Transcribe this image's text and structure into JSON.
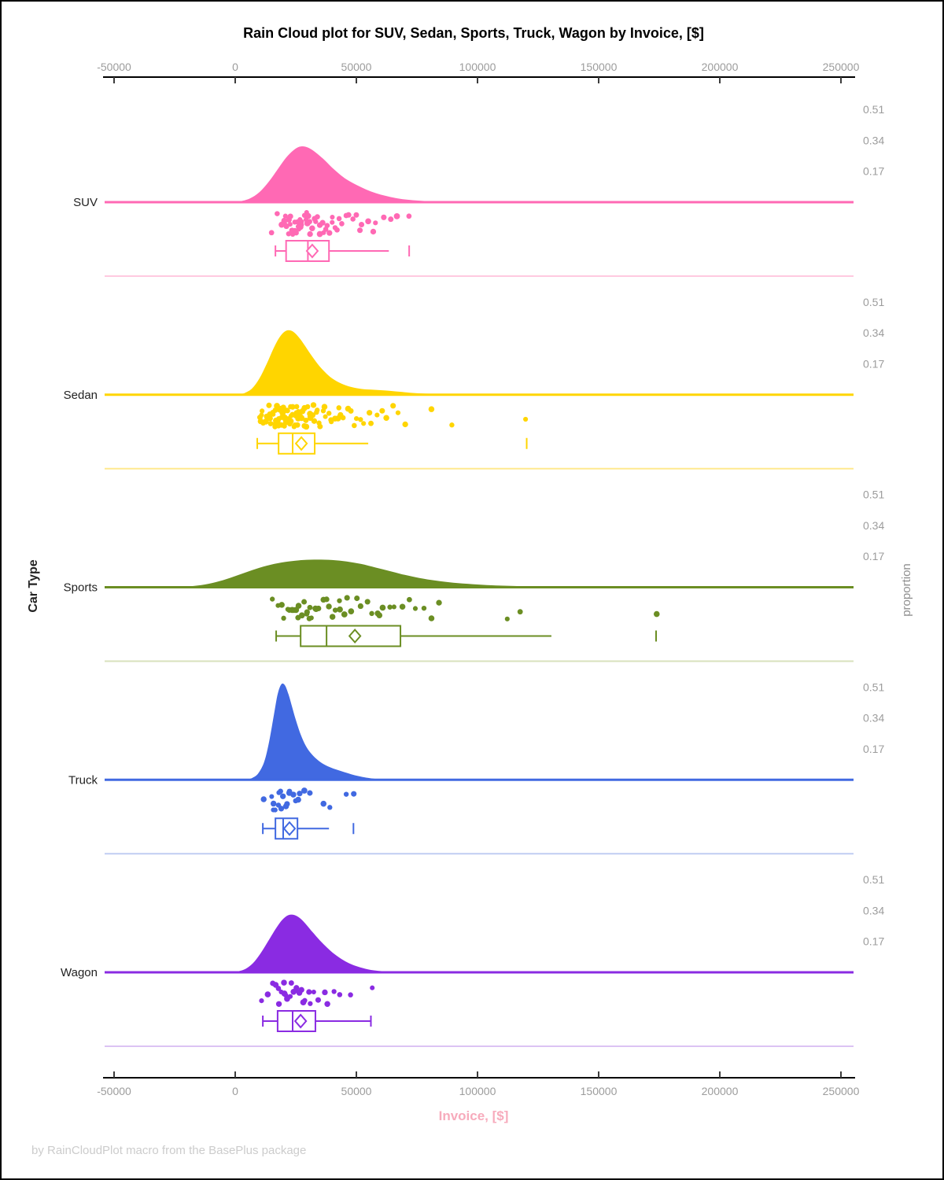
{
  "title": "Rain Cloud plot for SUV, Sedan, Sports, Truck, Wagon by Invoice, [$]",
  "footer": "by RainCloudPlot macro from the BasePlus package",
  "axes": {
    "x_label": "Invoice, [$]",
    "y_label_left": "Car Type",
    "y_label_right": "proportion",
    "x_ticks": [
      -50000,
      0,
      50000,
      100000,
      150000,
      200000,
      250000
    ],
    "x_range": [
      -53000,
      256000
    ],
    "proportion_ticks": [
      0.51,
      0.34,
      0.17
    ]
  },
  "colors": {
    "axis_line": "#000000",
    "tick_label": "#9C9C9C",
    "proportion_label": "#8F8F8F",
    "title": "#000000",
    "x_label_pink": "#F7ABBC",
    "footer_gray": "#CCCCCC",
    "category_label": "#222222"
  },
  "chart_data": {
    "type": "raincloud",
    "title": "Rain Cloud plot for SUV, Sedan, Sports, Truck, Wagon by Invoice, [$]",
    "xlabel": "Invoice, [$]",
    "ylabel_left": "Car Type",
    "ylabel_right": "proportion",
    "x_unit": "USD",
    "xlim": [
      -53000,
      256000
    ],
    "proportion_axis_ticks": [
      0.51,
      0.34,
      0.17
    ],
    "categories": [
      {
        "label": "SUV",
        "color": "#FF69B4",
        "color_light": "#FFC9E0",
        "box": {
          "whisker_low": 16600,
          "q1": 21000,
          "median": 30000,
          "q3": 38700,
          "whisker_high": 63400,
          "mean": 31800,
          "outliers": [
            71800
          ]
        },
        "density_peak_proportion": 0.31,
        "density": [
          [
            -2000,
            0
          ],
          [
            2000,
            0.005
          ],
          [
            6000,
            0.02
          ],
          [
            10000,
            0.055
          ],
          [
            14000,
            0.115
          ],
          [
            18000,
            0.19
          ],
          [
            21000,
            0.245
          ],
          [
            24000,
            0.285
          ],
          [
            26500,
            0.305
          ],
          [
            29000,
            0.305
          ],
          [
            31500,
            0.29
          ],
          [
            34000,
            0.265
          ],
          [
            37000,
            0.23
          ],
          [
            40000,
            0.19
          ],
          [
            43000,
            0.155
          ],
          [
            46000,
            0.125
          ],
          [
            50000,
            0.095
          ],
          [
            54000,
            0.07
          ],
          [
            58000,
            0.05
          ],
          [
            62000,
            0.035
          ],
          [
            66000,
            0.023
          ],
          [
            70000,
            0.015
          ],
          [
            75000,
            0.009
          ],
          [
            80000,
            0.005
          ],
          [
            86000,
            0.002
          ],
          [
            92000,
            0
          ]
        ],
        "points": [
          15500,
          16800,
          19100,
          19800,
          20300,
          20800,
          21300,
          21700,
          22100,
          22500,
          22900,
          23300,
          23700,
          24100,
          24500,
          24900,
          25300,
          25700,
          26100,
          26600,
          27000,
          27400,
          27900,
          28400,
          28900,
          29400,
          29900,
          30400,
          31000,
          31500,
          32100,
          32700,
          33300,
          33900,
          34600,
          35200,
          35900,
          36600,
          37400,
          38100,
          38900,
          39800,
          40600,
          41500,
          42500,
          43500,
          44600,
          45700,
          46900,
          48200,
          49600,
          51100,
          52700,
          54500,
          56400,
          58500,
          61000,
          64000,
          66500,
          71800
        ]
      },
      {
        "label": "Sedan",
        "color": "#FFD500",
        "color_light": "#FFE98F",
        "box": {
          "whisker_low": 9100,
          "q1": 17900,
          "median": 23700,
          "q3": 32800,
          "whisker_high": 54900,
          "mean": 27300,
          "outliers": [
            120300
          ]
        },
        "density_peak_proportion": 0.35,
        "density": [
          [
            1000,
            0
          ],
          [
            4000,
            0.01
          ],
          [
            7000,
            0.035
          ],
          [
            10000,
            0.09
          ],
          [
            13000,
            0.17
          ],
          [
            16000,
            0.26
          ],
          [
            18500,
            0.32
          ],
          [
            21000,
            0.352
          ],
          [
            23500,
            0.35
          ],
          [
            26000,
            0.32
          ],
          [
            28500,
            0.275
          ],
          [
            31000,
            0.225
          ],
          [
            34000,
            0.17
          ],
          [
            37000,
            0.125
          ],
          [
            40000,
            0.09
          ],
          [
            44000,
            0.06
          ],
          [
            48000,
            0.042
          ],
          [
            52000,
            0.032
          ],
          [
            56000,
            0.028
          ],
          [
            60000,
            0.025
          ],
          [
            64000,
            0.021
          ],
          [
            68000,
            0.016
          ],
          [
            72000,
            0.011
          ],
          [
            77000,
            0.007
          ],
          [
            83000,
            0.004
          ],
          [
            90000,
            0.002
          ],
          [
            97000,
            0
          ]
        ],
        "points": [
          9900,
          10600,
          11200,
          11700,
          12100,
          12500,
          12900,
          13200,
          13500,
          13800,
          14100,
          14400,
          14700,
          15000,
          15300,
          15600,
          15900,
          16100,
          16400,
          16600,
          16900,
          17100,
          17400,
          17600,
          17900,
          18100,
          18400,
          18600,
          18900,
          19100,
          19400,
          19600,
          19900,
          20100,
          20400,
          20600,
          20900,
          21100,
          21400,
          21600,
          21900,
          22100,
          22400,
          22600,
          22900,
          23100,
          23400,
          23700,
          23900,
          24200,
          24500,
          24800,
          25100,
          25400,
          25700,
          26000,
          26300,
          26600,
          26900,
          27200,
          27600,
          27900,
          28300,
          28700,
          29100,
          29500,
          29900,
          30300,
          30800,
          31200,
          31700,
          32200,
          32700,
          33200,
          33800,
          34400,
          35000,
          35600,
          36300,
          37000,
          37700,
          38500,
          39300,
          40100,
          41000,
          41900,
          42900,
          43900,
          45000,
          46100,
          47300,
          48600,
          50000,
          51500,
          53100,
          54800,
          56600,
          58500,
          60500,
          62700,
          65000,
          67500,
          70200,
          81300,
          89100,
          120300
        ]
      },
      {
        "label": "Sports",
        "color": "#6B8E23",
        "color_light": "#D8E1BC",
        "box": {
          "whisker_low": 16900,
          "q1": 27000,
          "median": 37700,
          "q3": 68200,
          "whisker_high": 130500,
          "mean": 49400,
          "outliers": [
            173700
          ]
        },
        "density_peak_proportion": 0.15,
        "density": [
          [
            -26000,
            0
          ],
          [
            -20000,
            0.004
          ],
          [
            -14000,
            0.012
          ],
          [
            -8000,
            0.028
          ],
          [
            -2000,
            0.052
          ],
          [
            4000,
            0.08
          ],
          [
            10000,
            0.107
          ],
          [
            16000,
            0.128
          ],
          [
            22000,
            0.142
          ],
          [
            28000,
            0.15
          ],
          [
            34000,
            0.152
          ],
          [
            40000,
            0.15
          ],
          [
            46000,
            0.142
          ],
          [
            52000,
            0.128
          ],
          [
            58000,
            0.108
          ],
          [
            64000,
            0.088
          ],
          [
            70000,
            0.068
          ],
          [
            76000,
            0.051
          ],
          [
            83000,
            0.036
          ],
          [
            90000,
            0.025
          ],
          [
            98000,
            0.017
          ],
          [
            106000,
            0.011
          ],
          [
            115000,
            0.007
          ],
          [
            125000,
            0.004
          ],
          [
            137000,
            0.002
          ],
          [
            150000,
            0.001
          ],
          [
            162000,
            0
          ]
        ],
        "points": [
          15600,
          17800,
          19200,
          20500,
          21600,
          22600,
          23500,
          24400,
          25300,
          25800,
          26200,
          27100,
          28000,
          28900,
          29800,
          30800,
          31300,
          31800,
          32800,
          33900,
          35000,
          36200,
          37400,
          38700,
          40000,
          41400,
          42900,
          43700,
          44500,
          46200,
          48000,
          49900,
          51900,
          54000,
          56200,
          58500,
          59700,
          60900,
          63400,
          66000,
          68700,
          71500,
          74400,
          77400,
          80500,
          83700,
          111700,
          117600,
          173700
        ]
      },
      {
        "label": "Truck",
        "color": "#4169E1",
        "color_light": "#C0CDF2",
        "box": {
          "whisker_low": 11400,
          "q1": 16600,
          "median": 19800,
          "q3": 25700,
          "whisker_high": 38700,
          "mean": 22400,
          "outliers": [
            48800
          ]
        },
        "density_peak_proportion": 0.53,
        "density": [
          [
            4000,
            0
          ],
          [
            7000,
            0.01
          ],
          [
            9500,
            0.035
          ],
          [
            12000,
            0.1
          ],
          [
            14000,
            0.21
          ],
          [
            16000,
            0.36
          ],
          [
            17500,
            0.47
          ],
          [
            19000,
            0.525
          ],
          [
            20500,
            0.52
          ],
          [
            22000,
            0.47
          ],
          [
            23500,
            0.4
          ],
          [
            25000,
            0.33
          ],
          [
            27000,
            0.25
          ],
          [
            29000,
            0.19
          ],
          [
            31000,
            0.15
          ],
          [
            33500,
            0.115
          ],
          [
            36000,
            0.09
          ],
          [
            39000,
            0.07
          ],
          [
            42000,
            0.055
          ],
          [
            45000,
            0.042
          ],
          [
            48000,
            0.03
          ],
          [
            51000,
            0.02
          ],
          [
            54000,
            0.012
          ],
          [
            58000,
            0.005
          ],
          [
            62000,
            0
          ]
        ],
        "points": [
          11400,
          14400,
          15300,
          16100,
          16800,
          17500,
          18100,
          18700,
          19300,
          19900,
          20500,
          21200,
          21900,
          22700,
          23600,
          24600,
          25700,
          27000,
          28600,
          30500,
          36200,
          39300,
          46000,
          48800
        ]
      },
      {
        "label": "Wagon",
        "color": "#8A2BE2",
        "color_light": "#DCC3F4",
        "box": {
          "whisker_low": 11400,
          "q1": 17500,
          "median": 23700,
          "q3": 33100,
          "whisker_high": 56000,
          "mean": 27000,
          "outliers": []
        },
        "density_peak_proportion": 0.32,
        "density": [
          [
            -2000,
            0
          ],
          [
            2000,
            0.008
          ],
          [
            5000,
            0.025
          ],
          [
            8000,
            0.06
          ],
          [
            11000,
            0.115
          ],
          [
            14000,
            0.18
          ],
          [
            17000,
            0.245
          ],
          [
            19500,
            0.29
          ],
          [
            22000,
            0.315
          ],
          [
            24500,
            0.315
          ],
          [
            27000,
            0.295
          ],
          [
            29500,
            0.26
          ],
          [
            32000,
            0.22
          ],
          [
            35000,
            0.175
          ],
          [
            38000,
            0.135
          ],
          [
            41000,
            0.1
          ],
          [
            44000,
            0.072
          ],
          [
            47000,
            0.05
          ],
          [
            50000,
            0.034
          ],
          [
            53000,
            0.022
          ],
          [
            56000,
            0.013
          ],
          [
            60000,
            0.007
          ],
          [
            64000,
            0.003
          ],
          [
            68000,
            0
          ]
        ],
        "points": [
          11500,
          13800,
          15200,
          16300,
          17200,
          18000,
          18800,
          19500,
          20200,
          20900,
          21600,
          22300,
          23000,
          23700,
          24500,
          25300,
          26100,
          27000,
          28000,
          29100,
          30300,
          31600,
          33000,
          34600,
          36400,
          38400,
          40700,
          43400,
          47400,
          56600
        ]
      }
    ]
  }
}
